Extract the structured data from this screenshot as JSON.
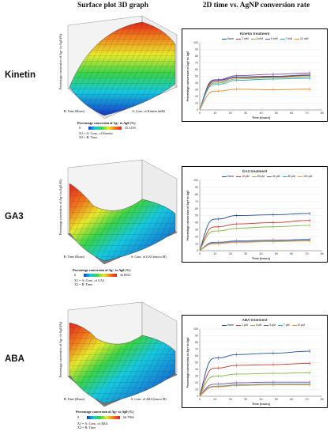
{
  "headers": {
    "col1": "Surface plot 3D graph",
    "col2": "2D time vs. AgNP conversion rate"
  },
  "rows": [
    {
      "label": "Kinetin",
      "surface": {
        "zlabel": "Percentage conversion of Ag+ to Ag0 (%)",
        "xlabel": "A: Conc. of Kinetin (mM)",
        "ylabel": "B: Time (Hours)",
        "colorbar_title": "Percentage conversion of Ag+ to Ag0 (%)",
        "colorbar_min": "0",
        "colorbar_max": "55.5158",
        "legend_x1": "X1 = A: Conc. of Kinetin",
        "legend_x2": "X2 = B: Time"
      }
    },
    {
      "label": "GA3",
      "surface": {
        "zlabel": "Percentage conversion of Ag+ to Ag0 (%)",
        "xlabel": "A: Conc. of GA3 (micro M)",
        "ylabel": "B: Time (Hours)",
        "colorbar_title": "Percentage conversion of Ag+ to Ag0 (%)",
        "colorbar_min": "0",
        "colorbar_max": "43.8923",
        "legend_x1": "X1 = A: Conc. of GA3",
        "legend_x2": "X2 = B: Time"
      }
    },
    {
      "label": "ABA",
      "surface": {
        "zlabel": "Percentage conversion of Ag+ to Ag0 (%)",
        "xlabel": "A: Conc. of ABA (micro M)",
        "ylabel": "B: Time (Hours)",
        "colorbar_title": "Percentage conversion of Ag+ to Ag0 (%)",
        "colorbar_min": "0",
        "colorbar_max": "66.7066",
        "legend_x1": "X1 = A: Conc. of ABA",
        "legend_x2": "X2 = B: Time"
      }
    }
  ],
  "colors": {
    "s0": "#1f4e9c",
    "s1": "#c0392b",
    "s2": "#7fb842",
    "s3": "#7b4ba8",
    "s4": "#2aa8c9",
    "s5": "#f08a24"
  },
  "chart_data": [
    {
      "type": "line",
      "title": "Kinetin treatment",
      "xlabel": "Time (hours)",
      "ylabel": "Percentage conversion of Ag+ to Ag0",
      "xlim": [
        0,
        80
      ],
      "ylim": [
        0,
        100
      ],
      "xticks": [
        0,
        10,
        20,
        30,
        40,
        50,
        60,
        70,
        80
      ],
      "yticks": [
        0,
        10,
        20,
        30,
        40,
        50,
        60,
        70,
        80,
        90,
        100
      ],
      "x": [
        0,
        12,
        24,
        48,
        72
      ],
      "series": [
        {
          "name": "None",
          "values": [
            0,
            44,
            49,
            50,
            52
          ]
        },
        {
          "name": "1 mM",
          "values": [
            0,
            42,
            48,
            49,
            51
          ]
        },
        {
          "name": "3 mM",
          "values": [
            0,
            40,
            46,
            48,
            49
          ]
        },
        {
          "name": "5 mM",
          "values": [
            0,
            45,
            51,
            53,
            55
          ]
        },
        {
          "name": "7 mM",
          "values": [
            0,
            38,
            44,
            46,
            47
          ]
        },
        {
          "name": "10 mM",
          "values": [
            0,
            28,
            31,
            30,
            31
          ]
        }
      ]
    },
    {
      "type": "line",
      "title": "GA3 treatment",
      "xlabel": "Time (hours)",
      "ylabel": "Percentage conversion of Ag+ to Ag0",
      "xlim": [
        0,
        80
      ],
      "ylim": [
        0,
        100
      ],
      "xticks": [
        0,
        10,
        20,
        30,
        40,
        50,
        60,
        70,
        80
      ],
      "yticks": [
        0,
        10,
        20,
        30,
        40,
        50,
        60,
        70,
        80,
        90,
        100
      ],
      "x": [
        0,
        12,
        24,
        48,
        72
      ],
      "series": [
        {
          "name": "None",
          "values": [
            0,
            45,
            50,
            51,
            53
          ]
        },
        {
          "name": "10 μM",
          "values": [
            0,
            34,
            38,
            40,
            43
          ]
        },
        {
          "name": "25 μM",
          "values": [
            0,
            28,
            32,
            34,
            36
          ]
        },
        {
          "name": "40 μM",
          "values": [
            0,
            12,
            14,
            15,
            16
          ]
        },
        {
          "name": "80 μM",
          "values": [
            0,
            11,
            13,
            14,
            15
          ]
        },
        {
          "name": "100 μM",
          "values": [
            0,
            10,
            12,
            13,
            14
          ]
        }
      ]
    },
    {
      "type": "line",
      "title": "ABA treatment",
      "xlabel": "Time (hours)",
      "ylabel": "Percentage conversion of Ag+ to Ag0",
      "xlim": [
        0,
        80
      ],
      "ylim": [
        0,
        100
      ],
      "xticks": [
        0,
        10,
        20,
        30,
        40,
        50,
        60,
        70,
        80
      ],
      "yticks": [
        0,
        10,
        20,
        30,
        40,
        50,
        60,
        70,
        80,
        90,
        100
      ],
      "x": [
        0,
        12,
        24,
        48,
        72
      ],
      "series": [
        {
          "name": "None",
          "values": [
            0,
            57,
            62,
            64,
            67
          ]
        },
        {
          "name": "1 μM",
          "values": [
            0,
            42,
            46,
            47,
            49
          ]
        },
        {
          "name": "3 μM",
          "values": [
            0,
            30,
            33,
            34,
            35
          ]
        },
        {
          "name": "5 μM",
          "values": [
            0,
            18,
            20,
            21,
            21
          ]
        },
        {
          "name": "7 μM",
          "values": [
            0,
            15,
            17,
            18,
            18
          ]
        },
        {
          "name": "10 μM",
          "values": [
            0,
            14,
            16,
            17,
            17
          ]
        }
      ]
    }
  ]
}
